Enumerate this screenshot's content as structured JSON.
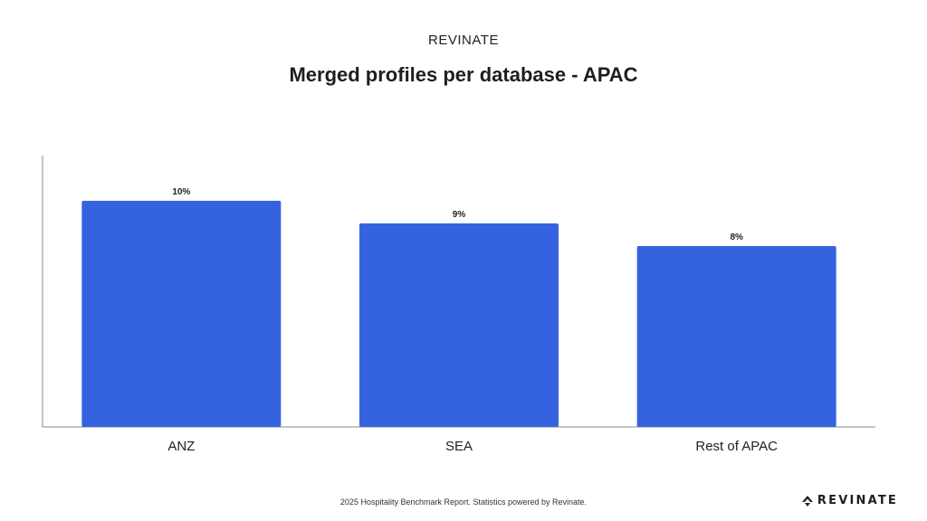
{
  "header": {
    "brand": "REVINATE"
  },
  "colors": {
    "bar": "#3563E0",
    "axis": "#888888",
    "text": "#222222"
  },
  "chart_data": {
    "type": "bar",
    "title": "Merged profiles per database - APAC",
    "categories": [
      "ANZ",
      "SEA",
      "Rest of APAC"
    ],
    "values": [
      10,
      9,
      8
    ],
    "data_labels": [
      "10%",
      "9%",
      "8%"
    ],
    "ylim": [
      0,
      12
    ],
    "xlabel": "",
    "ylabel": "",
    "grid": false,
    "legend": "none"
  },
  "footer": {
    "note": "2025 Hospitality Benchmark Report. Statistics powered by Revinate.",
    "logo_text": "REVINATE",
    "logo_icon": "revinate-logo-icon"
  }
}
